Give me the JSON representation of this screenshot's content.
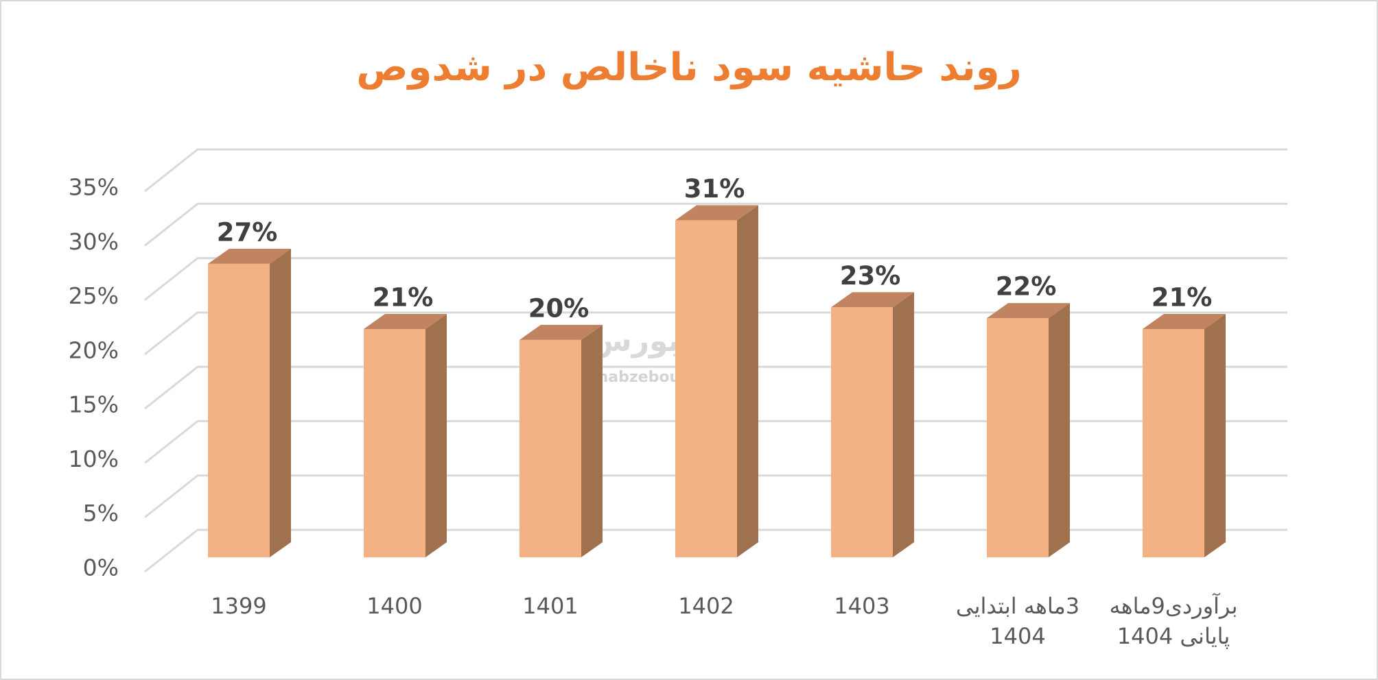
{
  "chart_data": {
    "type": "bar3d",
    "title": "روند حاشیه سود ناخالص در شدوص",
    "categories": [
      "1399",
      "1400",
      "1401",
      "1402",
      "1403",
      "3ماهه ابتدایی 1404",
      "برآوردی9ماهه پایانی 1404"
    ],
    "values": [
      27,
      21,
      20,
      31,
      23,
      22,
      21
    ],
    "value_labels": [
      "27%",
      "21%",
      "20%",
      "31%",
      "23%",
      "22%",
      "21%"
    ],
    "ylim": [
      0,
      35
    ],
    "yticks": [
      {
        "value": 0,
        "label": "0%"
      },
      {
        "value": 5,
        "label": "5%"
      },
      {
        "value": 10,
        "label": "10%"
      },
      {
        "value": 15,
        "label": "15%"
      },
      {
        "value": 20,
        "label": "20%"
      },
      {
        "value": 25,
        "label": "25%"
      },
      {
        "value": 30,
        "label": "30%"
      },
      {
        "value": 35,
        "label": "35%"
      }
    ],
    "grid": true,
    "colors": {
      "front": "#f4b183",
      "side": "#a0714f",
      "top": "#c08560"
    },
    "watermark": {
      "name": "نبض بورس",
      "url": "nabzebourse.com"
    }
  }
}
